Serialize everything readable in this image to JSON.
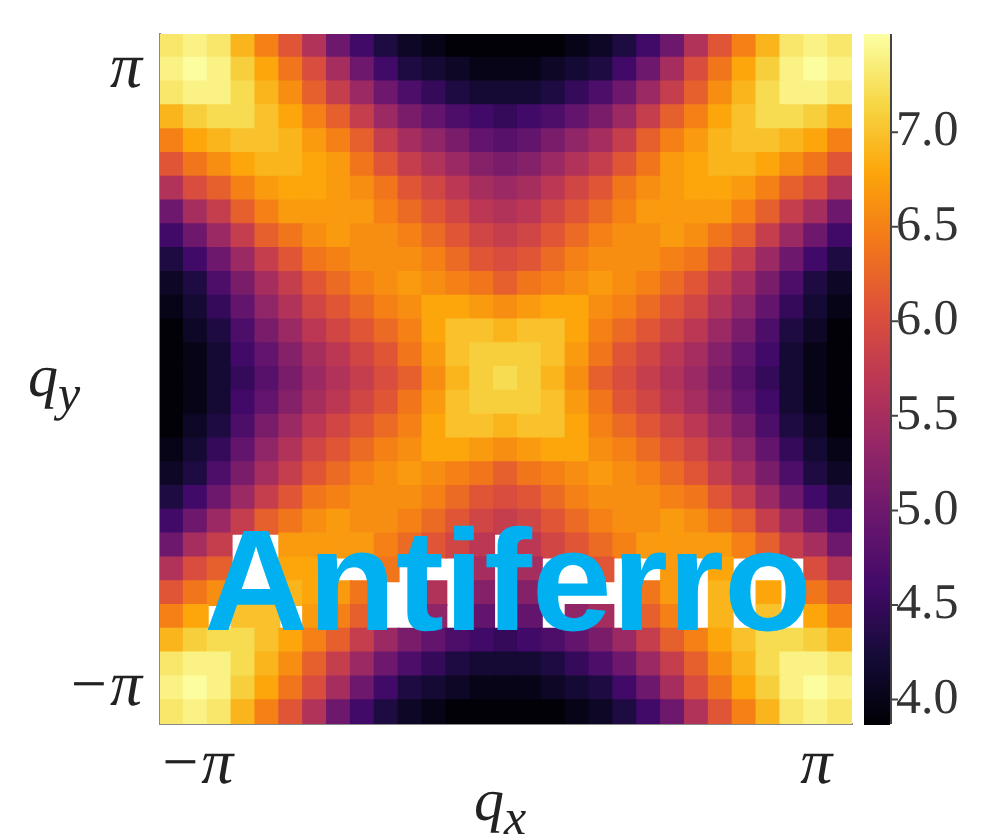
{
  "chart_data": {
    "type": "heatmap",
    "xlabel": "q$_{x}$",
    "ylabel": "q$_{y}$",
    "categories": [
      null,
      "−π",
      null,
      null,
      null,
      null,
      null,
      null,
      null,
      null,
      null,
      null,
      null,
      null,
      null,
      null,
      null,
      null,
      null,
      null,
      null,
      null,
      null,
      null,
      null,
      null,
      null,
      "π",
      null
    ],
    "y_categories": [
      null,
      "π",
      null,
      null,
      null,
      null,
      null,
      null,
      null,
      null,
      null,
      null,
      null,
      null,
      null,
      null,
      null,
      null,
      null,
      null,
      null,
      null,
      null,
      null,
      null,
      null,
      null,
      "−π",
      null
    ],
    "cells": [
      [
        7.3,
        7.4,
        7.3,
        6.9,
        6.5,
        6.1,
        5.6,
        5,
        4.6,
        4.3,
        4.1,
        4,
        3.9,
        3.9,
        3.9,
        3.9,
        3.9,
        4,
        4.1,
        4.3,
        4.6,
        5,
        5.6,
        6.1,
        6.5,
        6.9,
        7.3,
        7.4,
        7.3
      ],
      [
        7.4,
        7.5,
        7.4,
        7.1,
        6.8,
        6.4,
        6,
        5.5,
        5,
        4.6,
        4.3,
        4.2,
        4.1,
        4,
        4,
        4,
        4.1,
        4.2,
        4.3,
        4.6,
        5,
        5.5,
        6,
        6.4,
        6.8,
        7.1,
        7.4,
        7.5,
        7.4
      ],
      [
        7.3,
        7.4,
        7.4,
        7.2,
        6.9,
        6.6,
        6.2,
        5.8,
        5.4,
        5,
        4.7,
        4.5,
        4.3,
        4.2,
        4.2,
        4.2,
        4.3,
        4.5,
        4.7,
        5,
        5.4,
        5.8,
        6.2,
        6.6,
        6.9,
        7.2,
        7.4,
        7.4,
        7.3
      ],
      [
        6.9,
        7.1,
        7.2,
        7.2,
        7,
        6.8,
        6.5,
        6.2,
        5.8,
        5.4,
        5.1,
        4.9,
        4.7,
        4.6,
        4.5,
        4.6,
        4.7,
        4.9,
        5.1,
        5.4,
        5.8,
        6.2,
        6.5,
        6.8,
        7,
        7.2,
        7.2,
        7.1,
        6.9
      ],
      [
        6.5,
        6.8,
        6.9,
        7,
        7,
        6.9,
        6.7,
        6.5,
        6.2,
        5.8,
        5.5,
        5.3,
        5.1,
        4.9,
        4.8,
        4.9,
        5.1,
        5.3,
        5.5,
        5.8,
        6.2,
        6.5,
        6.7,
        6.9,
        7,
        7,
        6.9,
        6.8,
        6.5
      ],
      [
        6.1,
        6.4,
        6.6,
        6.8,
        6.9,
        6.9,
        6.8,
        6.7,
        6.4,
        6.1,
        5.8,
        5.6,
        5.4,
        5.2,
        5.1,
        5.2,
        5.4,
        5.6,
        5.8,
        6.1,
        6.4,
        6.7,
        6.8,
        6.9,
        6.9,
        6.8,
        6.6,
        6.4,
        6.1
      ],
      [
        5.6,
        6,
        6.2,
        6.5,
        6.7,
        6.8,
        6.8,
        6.7,
        6.6,
        6.4,
        6.1,
        5.9,
        5.7,
        5.5,
        5.4,
        5.5,
        5.7,
        5.9,
        6.1,
        6.4,
        6.6,
        6.7,
        6.8,
        6.8,
        6.7,
        6.5,
        6.2,
        6,
        5.6
      ],
      [
        5,
        5.5,
        5.8,
        6.2,
        6.5,
        6.7,
        6.7,
        6.7,
        6.7,
        6.5,
        6.3,
        6.1,
        5.9,
        5.7,
        5.6,
        5.7,
        5.9,
        6.1,
        6.3,
        6.5,
        6.7,
        6.7,
        6.7,
        6.7,
        6.5,
        6.2,
        5.8,
        5.5,
        5
      ],
      [
        4.6,
        5,
        5.4,
        5.8,
        6.2,
        6.4,
        6.6,
        6.7,
        6.6,
        6.6,
        6.5,
        6.3,
        6.1,
        5.9,
        5.8,
        5.9,
        6.1,
        6.3,
        6.5,
        6.6,
        6.6,
        6.7,
        6.6,
        6.4,
        6.2,
        5.8,
        5.4,
        5,
        4.6
      ],
      [
        4.3,
        4.6,
        5,
        5.4,
        5.8,
        6.1,
        6.4,
        6.5,
        6.6,
        6.6,
        6.6,
        6.5,
        6.3,
        6.1,
        6,
        6.1,
        6.3,
        6.5,
        6.6,
        6.6,
        6.6,
        6.5,
        6.4,
        6.1,
        5.8,
        5.4,
        5,
        4.6,
        4.3
      ],
      [
        4.1,
        4.3,
        4.7,
        5.1,
        5.5,
        5.8,
        6.1,
        6.3,
        6.5,
        6.6,
        6.7,
        6.6,
        6.5,
        6.4,
        6.2,
        6.4,
        6.5,
        6.6,
        6.7,
        6.6,
        6.5,
        6.3,
        6.1,
        5.8,
        5.5,
        5.1,
        4.7,
        4.3,
        4.1
      ],
      [
        4,
        4.2,
        4.5,
        4.9,
        5.3,
        5.6,
        5.9,
        6.1,
        6.3,
        6.5,
        6.6,
        6.8,
        6.8,
        6.7,
        6.6,
        6.7,
        6.8,
        6.8,
        6.6,
        6.5,
        6.3,
        6.1,
        5.9,
        5.6,
        5.3,
        4.9,
        4.5,
        4.2,
        4
      ],
      [
        3.9,
        4.1,
        4.3,
        4.7,
        5.1,
        5.4,
        5.7,
        5.9,
        6.1,
        6.3,
        6.5,
        6.8,
        7,
        7,
        6.9,
        7,
        7,
        6.8,
        6.5,
        6.3,
        6.1,
        5.9,
        5.7,
        5.4,
        5.1,
        4.7,
        4.3,
        4.1,
        3.9
      ],
      [
        3.9,
        4,
        4.2,
        4.6,
        4.9,
        5.2,
        5.5,
        5.7,
        5.9,
        6.1,
        6.4,
        6.7,
        7,
        7.1,
        7.1,
        7.1,
        7,
        6.7,
        6.4,
        6.1,
        5.9,
        5.7,
        5.5,
        5.2,
        4.9,
        4.6,
        4.2,
        4,
        3.9
      ],
      [
        3.9,
        4,
        4.2,
        4.5,
        4.8,
        5.1,
        5.4,
        5.6,
        5.8,
        6,
        6.2,
        6.6,
        6.9,
        7.1,
        7.2,
        7.1,
        6.9,
        6.6,
        6.2,
        6,
        5.8,
        5.6,
        5.4,
        5.1,
        4.8,
        4.5,
        4.2,
        4,
        3.9
      ],
      [
        3.9,
        4,
        4.2,
        4.6,
        4.9,
        5.2,
        5.5,
        5.7,
        5.9,
        6.1,
        6.4,
        6.7,
        7,
        7.1,
        7.1,
        7.1,
        7,
        6.7,
        6.4,
        6.1,
        5.9,
        5.7,
        5.5,
        5.2,
        4.9,
        4.6,
        4.2,
        4,
        3.9
      ],
      [
        3.9,
        4.1,
        4.3,
        4.7,
        5.1,
        5.4,
        5.7,
        5.9,
        6.1,
        6.3,
        6.5,
        6.8,
        7,
        7,
        6.9,
        7,
        7,
        6.8,
        6.5,
        6.3,
        6.1,
        5.9,
        5.7,
        5.4,
        5.1,
        4.7,
        4.3,
        4.1,
        3.9
      ],
      [
        4,
        4.2,
        4.5,
        4.9,
        5.3,
        5.6,
        5.9,
        6.1,
        6.3,
        6.5,
        6.6,
        6.8,
        6.8,
        6.7,
        6.6,
        6.7,
        6.8,
        6.8,
        6.6,
        6.5,
        6.3,
        6.1,
        5.9,
        5.6,
        5.3,
        4.9,
        4.5,
        4.2,
        4
      ],
      [
        4.1,
        4.3,
        4.7,
        5.1,
        5.5,
        5.8,
        6.1,
        6.3,
        6.5,
        6.6,
        6.7,
        6.6,
        6.5,
        6.4,
        6.2,
        6.4,
        6.5,
        6.6,
        6.7,
        6.6,
        6.5,
        6.3,
        6.1,
        5.8,
        5.5,
        5.1,
        4.7,
        4.3,
        4.1
      ],
      [
        4.3,
        4.6,
        5,
        5.4,
        5.8,
        6.1,
        6.4,
        6.5,
        6.6,
        6.6,
        6.6,
        6.5,
        6.3,
        6.1,
        6,
        6.1,
        6.3,
        6.5,
        6.6,
        6.6,
        6.6,
        6.5,
        6.4,
        6.1,
        5.8,
        5.4,
        5,
        4.6,
        4.3
      ],
      [
        4.6,
        5,
        5.4,
        5.8,
        6.2,
        6.4,
        6.6,
        6.7,
        6.6,
        6.6,
        6.5,
        6.3,
        6.1,
        5.9,
        5.8,
        5.9,
        6.1,
        6.3,
        6.5,
        6.6,
        6.6,
        6.7,
        6.6,
        6.4,
        6.2,
        5.8,
        5.4,
        5,
        4.6
      ],
      [
        5,
        5.5,
        5.8,
        null,
        null,
        6.7,
        6.7,
        6.7,
        6.7,
        6.5,
        6.3,
        6.1,
        5.9,
        5.7,
        null,
        5.7,
        5.9,
        6.1,
        6.3,
        6.5,
        6.7,
        6.7,
        6.7,
        6.7,
        6.5,
        6.2,
        5.8,
        5.5,
        5
      ],
      [
        5.6,
        6,
        6.2,
        null,
        null,
        6.8,
        6.8,
        null,
        null,
        6.4,
        null,
        null,
        null,
        5.5,
        null,
        5.5,
        null,
        null,
        6.1,
        null,
        null,
        6.7,
        null,
        6.8,
        null,
        null,
        null,
        6,
        5.6
      ],
      [
        6.1,
        6.4,
        6.6,
        null,
        null,
        6.9,
        6.8,
        6.7,
        6.4,
        null,
        null,
        5.6,
        null,
        5.2,
        null,
        5.2,
        null,
        null,
        null,
        null,
        6.4,
        6.7,
        null,
        6.9,
        null,
        6.8,
        null,
        6.4,
        6.1
      ],
      [
        6.5,
        6.8,
        null,
        7,
        7,
        null,
        6.7,
        6.5,
        6.2,
        null,
        null,
        5.3,
        null,
        4.9,
        null,
        4.9,
        null,
        5.3,
        5.5,
        null,
        6.2,
        6.5,
        null,
        6.9,
        null,
        7,
        null,
        6.8,
        6.5
      ],
      [
        6.9,
        7.1,
        7.2,
        7.2,
        7,
        6.8,
        6.5,
        6.2,
        5.8,
        5.4,
        5.1,
        4.9,
        4.7,
        4.6,
        4.5,
        4.6,
        4.7,
        4.9,
        5.1,
        5.4,
        5.8,
        6.2,
        6.5,
        6.8,
        7,
        7.2,
        7.2,
        7.1,
        6.9
      ],
      [
        7.3,
        7.4,
        7.4,
        7.2,
        6.9,
        6.6,
        6.2,
        5.8,
        5.4,
        5,
        4.7,
        4.5,
        4.3,
        4.2,
        4.2,
        4.2,
        4.3,
        4.5,
        4.7,
        5,
        5.4,
        5.8,
        6.2,
        6.6,
        6.9,
        7.2,
        7.4,
        7.4,
        7.3
      ],
      [
        7.4,
        7.5,
        7.4,
        7.1,
        6.8,
        6.4,
        6,
        5.5,
        5,
        4.6,
        4.3,
        4.2,
        4.1,
        4,
        4,
        4,
        4.1,
        4.2,
        4.3,
        4.6,
        5,
        5.5,
        6,
        6.4,
        6.8,
        7.1,
        7.4,
        7.5,
        7.4
      ],
      [
        7.3,
        7.4,
        7.3,
        6.9,
        6.5,
        6.1,
        5.6,
        5,
        4.6,
        4.3,
        4.1,
        4,
        3.9,
        3.9,
        3.9,
        3.9,
        3.9,
        4,
        4.1,
        4.3,
        4.6,
        5,
        5.6,
        6.1,
        6.5,
        6.9,
        7.3,
        7.4,
        7.3
      ]
    ],
    "clim": [
      3.87,
      7.52
    ],
    "cticks": [
      {
        "value": 4,
        "label": "4.0"
      },
      4.5,
      {
        "value": 5,
        "label": "5.0"
      },
      5.5,
      {
        "value": 6,
        "label": "6.0"
      },
      6.5,
      {
        "value": 7,
        "label": "7.0"
      }
    ],
    "annotations": [
      "Antiferro"
    ]
  }
}
